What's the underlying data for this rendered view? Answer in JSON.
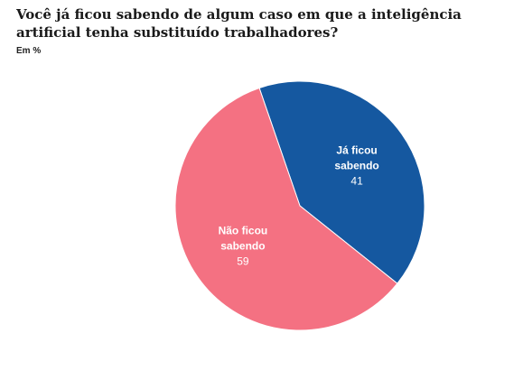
{
  "title": "Você já ficou sabendo de algum caso em que a inteligência artificial tenha substituído trabalhadores?",
  "subtitle": "Em %",
  "chart_data": {
    "type": "pie",
    "title": "Você já ficou sabendo de algum caso em que a inteligência artificial tenha substituído trabalhadores?",
    "subtitle": "Em %",
    "unit": "%",
    "slices": [
      {
        "label_lines": [
          "Já ficou",
          "sabendo"
        ],
        "value": 41,
        "color": "#1558a0"
      },
      {
        "label_lines": [
          "Não ficou",
          "sabendo"
        ],
        "value": 59,
        "color": "#f47182"
      }
    ]
  }
}
